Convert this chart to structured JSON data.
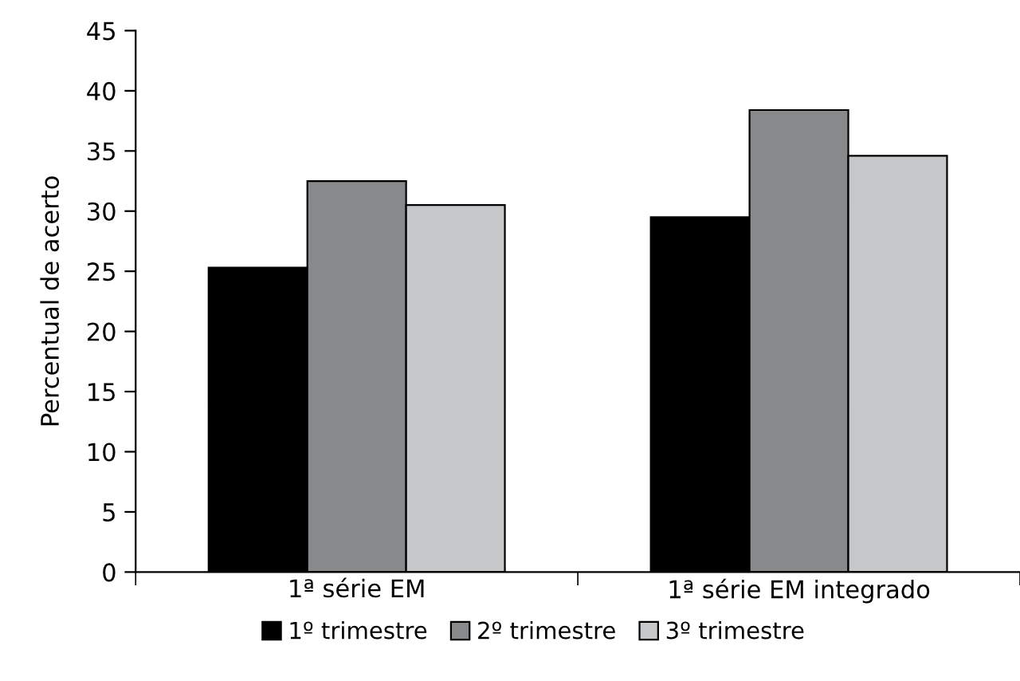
{
  "chart_data": {
    "type": "bar",
    "ylabel": "Percentual de acerto",
    "categories": [
      "1ª série EM",
      "1ª série EM integrado"
    ],
    "series": [
      {
        "name": "1º trimestre",
        "color": "#000000",
        "values": [
          25.3,
          29.5
        ]
      },
      {
        "name": "2º trimestre",
        "color": "#88898b",
        "values": [
          32.5,
          38.4
        ]
      },
      {
        "name": "3º trimestre",
        "color": "#c6c7c9",
        "values": [
          30.5,
          34.6
        ]
      }
    ],
    "ylim": [
      0,
      45
    ],
    "yticks": [
      0,
      5,
      10,
      15,
      20,
      25,
      30,
      35,
      40,
      45
    ],
    "grid": false,
    "legend": "bottom"
  }
}
